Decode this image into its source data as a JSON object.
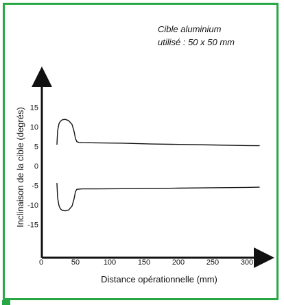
{
  "chart_data": {
    "type": "line",
    "title": "",
    "annotation": [
      "Cible aluminium",
      "utilisé : 50 x 50 mm"
    ],
    "xlabel": "Distance opérationnelle (mm)",
    "ylabel": "Inclinaison de la cible  (degrés)",
    "xlim": [
      0,
      320
    ],
    "ylim": [
      -20,
      20
    ],
    "xticks": [
      0,
      50,
      100,
      150,
      200,
      250,
      300
    ],
    "yticks": [
      -15,
      -10,
      -5,
      0,
      5,
      10,
      15
    ],
    "grid": false,
    "colors": {
      "series": "#111111",
      "frame": "#27a844"
    },
    "series": [
      {
        "x": [
          23,
          24,
          26,
          28,
          31,
          35,
          40,
          45,
          48,
          50,
          52,
          55,
          60,
          80,
          120,
          160,
          200,
          250,
          300,
          318
        ],
        "y": [
          5.5,
          9,
          10.8,
          11.4,
          11.8,
          11.9,
          11.6,
          10.6,
          8.8,
          7,
          6.2,
          6.0,
          5.95,
          5.9,
          5.8,
          5.6,
          5.5,
          5.35,
          5.2,
          5.15
        ]
      },
      {
        "x": [
          23,
          24,
          26,
          28,
          31,
          35,
          40,
          45,
          48,
          50,
          52,
          55,
          60,
          80,
          120,
          160,
          200,
          250,
          300,
          318
        ],
        "y": [
          -4.5,
          -8.2,
          -10.2,
          -11,
          -11.4,
          -11.5,
          -11.3,
          -10.3,
          -8.4,
          -6.6,
          -6.0,
          -5.95,
          -5.9,
          -5.9,
          -5.85,
          -5.8,
          -5.7,
          -5.6,
          -5.5,
          -5.45
        ]
      }
    ]
  }
}
